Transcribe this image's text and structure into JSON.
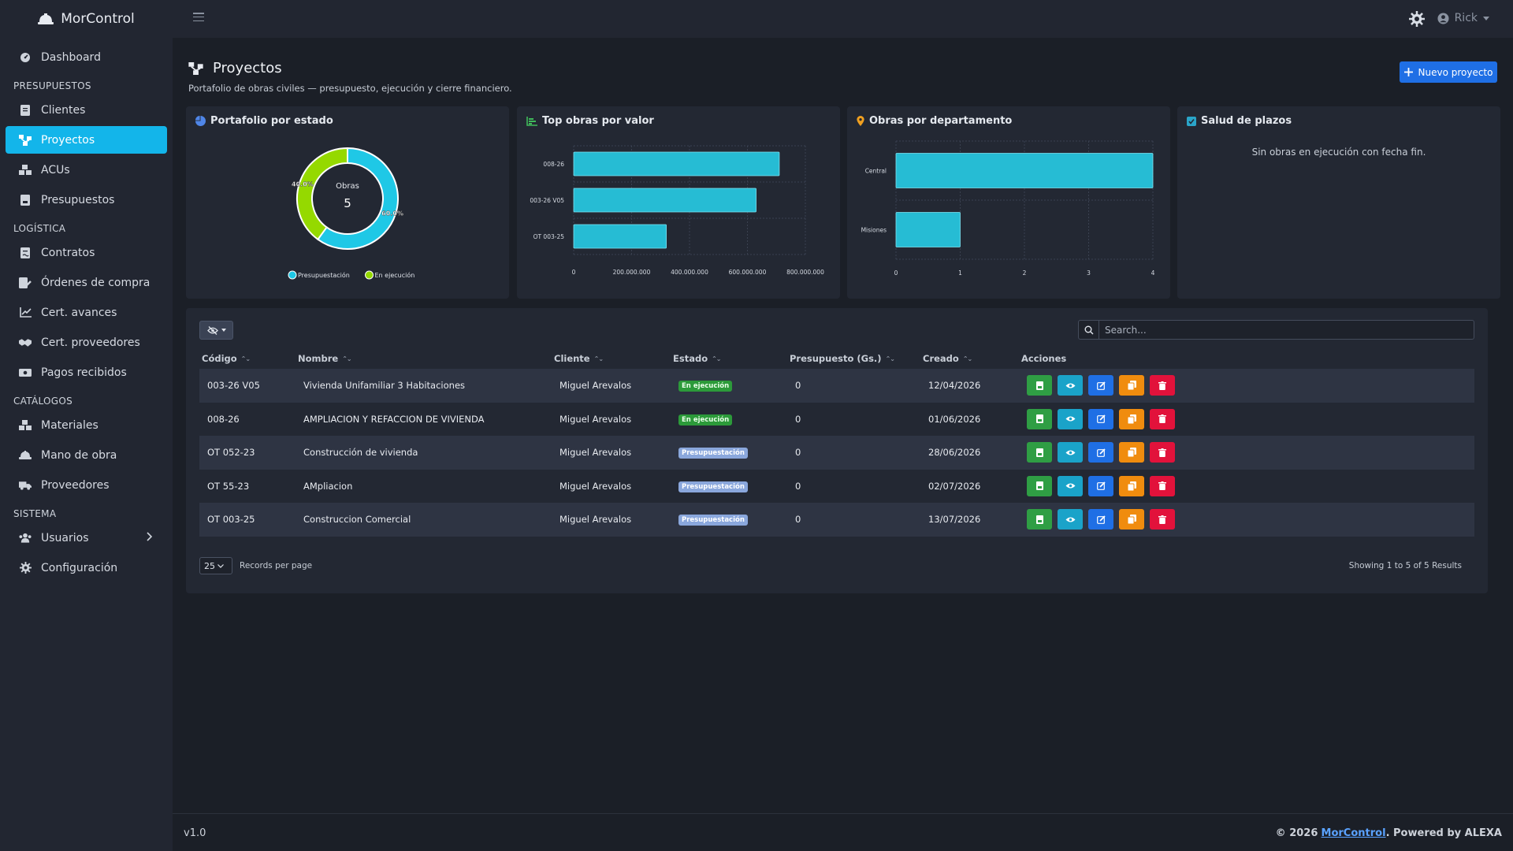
{
  "app": {
    "brand": "MorControl"
  },
  "sidebar": {
    "dashboard": "Dashboard",
    "sections": {
      "presupuestos": "PRESUPUESTOS",
      "logistica": "LOGÍSTICA",
      "catalogos": "CATÁLOGOS",
      "sistema": "SISTEMA"
    },
    "items": {
      "clientes": "Clientes",
      "proyectos": "Proyectos",
      "acus": "ACUs",
      "presupuestos": "Presupuestos",
      "contratos": "Contratos",
      "ordenes": "Órdenes de compra",
      "cert_avances": "Cert. avances",
      "cert_proveedores": "Cert. proveedores",
      "pagos": "Pagos recibidos",
      "materiales": "Materiales",
      "mano_obra": "Mano de obra",
      "proveedores": "Proveedores",
      "usuarios": "Usuarios",
      "configuracion": "Configuración"
    },
    "active": "proyectos"
  },
  "topbar": {
    "user": "Rick"
  },
  "page": {
    "title": "Proyectos",
    "subtitle": "Portafolio de obras civiles — presupuesto, ejecución y cierre financiero.",
    "new_button": "Nuevo proyecto"
  },
  "cards": {
    "estado": {
      "title": "Portafolio por estado",
      "center_label": "Obras",
      "center_value": "5"
    },
    "top": {
      "title": "Top obras por valor"
    },
    "depto": {
      "title": "Obras por departamento"
    },
    "salud": {
      "title": "Salud de plazos",
      "empty": "Sin obras en ejecución con fecha fin."
    }
  },
  "chart_data": [
    {
      "type": "pie",
      "title": "Portafolio por estado",
      "labels": [
        "Presupuestación",
        "En ejecución"
      ],
      "values": [
        60.0,
        40.0
      ],
      "value_labels": [
        "60.0%",
        "40.0%"
      ],
      "colors": [
        "#1fc8e6",
        "#95d900"
      ],
      "legend": "bottom"
    },
    {
      "type": "bar",
      "orientation": "horizontal",
      "title": "Top obras por valor",
      "categories": [
        "008-26",
        "003-26 V05",
        "OT 003-25"
      ],
      "values": [
        710000000,
        630000000,
        320000000
      ],
      "xlim": [
        0,
        800000000
      ],
      "xticks": [
        "0",
        "200.000.000",
        "400.000.000",
        "600.000.000",
        "800.000.000"
      ],
      "color": "#26bcd4"
    },
    {
      "type": "bar",
      "orientation": "horizontal",
      "title": "Obras por departamento",
      "categories": [
        "Central",
        "Misiones"
      ],
      "values": [
        4,
        1
      ],
      "xlim": [
        0,
        4
      ],
      "xticks": [
        "0",
        "1",
        "2",
        "3",
        "4"
      ],
      "color": "#26bcd4"
    }
  ],
  "table": {
    "search_placeholder": "Search...",
    "headers": {
      "codigo": "Código",
      "nombre": "Nombre",
      "cliente": "Cliente",
      "estado": "Estado",
      "presupuesto": "Presupuesto (Gs.)",
      "creado": "Creado",
      "acciones": "Acciones"
    },
    "rows": [
      {
        "codigo": "003-26 V05",
        "nombre": "Vivienda Unifamiliar 3 Habitaciones",
        "cliente": "Miguel Arevalos",
        "estado": "En ejecución",
        "presupuesto": "0",
        "creado": "12/04/2026"
      },
      {
        "codigo": "008-26",
        "nombre": "AMPLIACION Y REFACCION DE VIVIENDA",
        "cliente": "Miguel Arevalos",
        "estado": "En ejecución",
        "presupuesto": "0",
        "creado": "01/06/2026"
      },
      {
        "codigo": "OT 052-23",
        "nombre": "Construcción de vivienda",
        "cliente": "Miguel Arevalos",
        "estado": "Presupuestación",
        "presupuesto": "0",
        "creado": "28/06/2026"
      },
      {
        "codigo": "OT 55-23",
        "nombre": "AMpliacion",
        "cliente": "Miguel Arevalos",
        "estado": "Presupuestación",
        "presupuesto": "0",
        "creado": "02/07/2026"
      },
      {
        "codigo": "OT 003-25",
        "nombre": "Construccion Comercial",
        "cliente": "Miguel Arevalos",
        "estado": "Presupuestación",
        "presupuesto": "0",
        "creado": "13/07/2026"
      }
    ],
    "per_page": "25",
    "per_page_label": "Records per page",
    "showing": "Showing 1 to 5 of 5 Results"
  },
  "footer": {
    "version": "v1.0",
    "copy_prefix": "© 2026",
    "copy_link": "MorControl",
    "copy_suffix": ". Powered by ALEXA"
  }
}
